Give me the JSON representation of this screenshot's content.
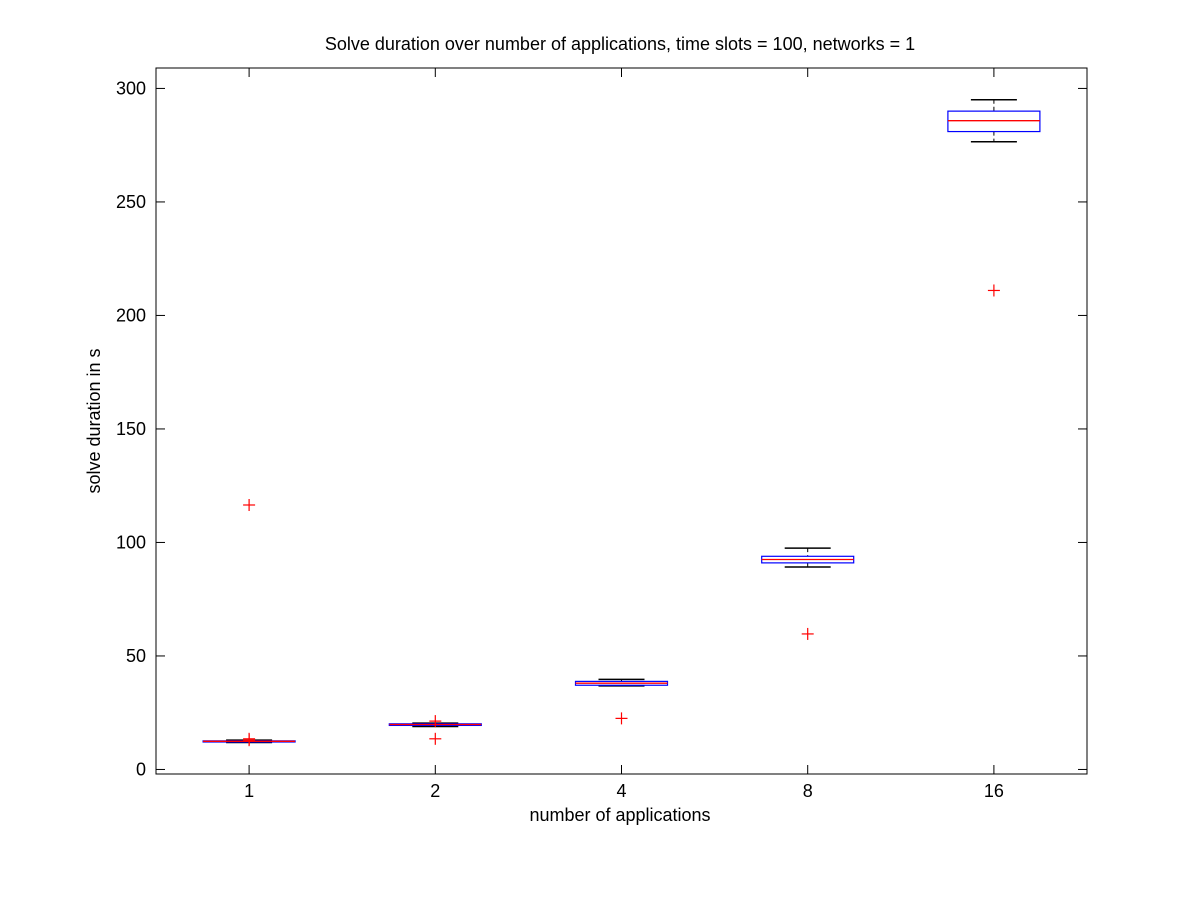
{
  "chart_data": {
    "type": "box",
    "title": "Solve duration over number of applications, time slots = 100, networks = 1",
    "xlabel": "number of applications",
    "ylabel": "solve duration in s",
    "ylim": [
      -2,
      309
    ],
    "y_ticks": [
      0,
      50,
      100,
      150,
      200,
      250,
      300
    ],
    "categories": [
      "1",
      "2",
      "4",
      "8",
      "16"
    ],
    "boxes": [
      {
        "category": "1",
        "q1": 12.1,
        "median": 12.4,
        "q3": 12.6,
        "whisker_low": 11.9,
        "whisker_high": 12.9,
        "outliers": [
          116.5,
          13.5,
          12.9
        ]
      },
      {
        "category": "2",
        "q1": 19.4,
        "median": 19.8,
        "q3": 20.1,
        "whisker_low": 18.9,
        "whisker_high": 20.4,
        "outliers": [
          21.3,
          13.5
        ]
      },
      {
        "category": "4",
        "q1": 37.1,
        "median": 38.0,
        "q3": 38.8,
        "whisker_low": 36.8,
        "whisker_high": 39.7,
        "outliers": [
          22.5
        ]
      },
      {
        "category": "8",
        "q1": 91.0,
        "median": 92.5,
        "q3": 93.9,
        "whisker_low": 89.2,
        "whisker_high": 97.5,
        "outliers": [
          59.7
        ]
      },
      {
        "category": "16",
        "q1": 281.0,
        "median": 285.8,
        "q3": 290.0,
        "whisker_low": 276.5,
        "whisker_high": 295.0,
        "outliers": [
          211.0
        ]
      }
    ],
    "colors": {
      "box": "#0000ff",
      "median": "#ff0000",
      "whisker": "#000000",
      "outlier": "#ff0000",
      "frame": "#000000"
    },
    "grid": false,
    "legend": "none"
  }
}
